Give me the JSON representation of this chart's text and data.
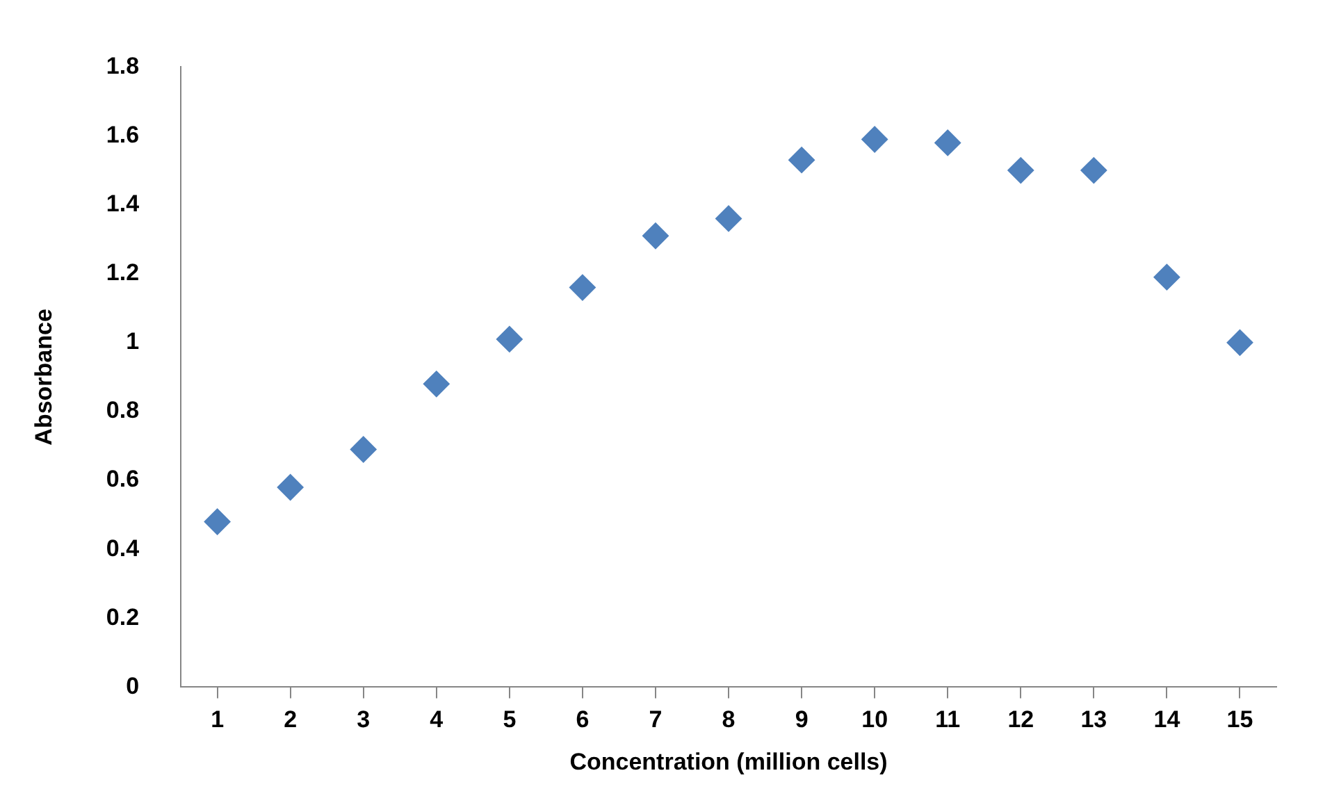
{
  "chart_data": {
    "type": "scatter",
    "xlabel": "Concentration (million cells)",
    "ylabel": "Absorbance",
    "x": [
      1,
      2,
      3,
      4,
      5,
      6,
      7,
      8,
      9,
      10,
      11,
      12,
      13,
      14,
      15
    ],
    "series": [
      {
        "color": "#4f81bd",
        "values": [
          0.48,
          0.58,
          0.69,
          0.88,
          1.01,
          1.16,
          1.31,
          1.36,
          1.53,
          1.59,
          1.58,
          1.5,
          1.5,
          1.19,
          1.0
        ]
      }
    ],
    "xlim": [
      0.5,
      15.5
    ],
    "xticks": [
      1,
      2,
      3,
      4,
      5,
      6,
      7,
      8,
      9,
      10,
      11,
      12,
      13,
      14,
      15
    ],
    "ylim": [
      0,
      1.8
    ],
    "yticks": [
      0,
      0.2,
      0.4,
      0.6,
      0.8,
      1,
      1.2,
      1.4,
      1.6,
      1.8
    ],
    "grid": false,
    "legend": false,
    "marker": "diamond"
  }
}
